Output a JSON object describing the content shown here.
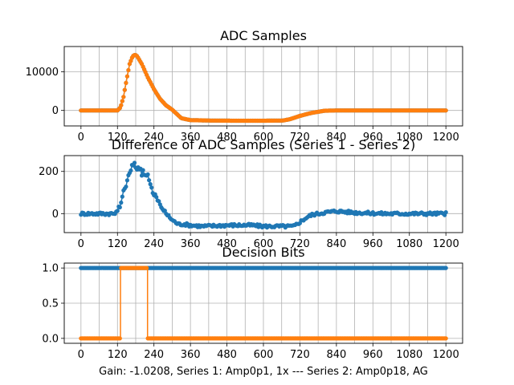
{
  "figure": {
    "xlabel": "Gain: -1.0208, Series 1: Amp0p1, 1x --- Series 2: Amp0p18, AG"
  },
  "colors": {
    "series1": "#1f77b4",
    "series2": "#ff7f0e",
    "grid": "#b0b0b0"
  },
  "chart_data": [
    {
      "type": "line",
      "title": "ADC Samples",
      "xlim": [
        -55,
        1255
      ],
      "ylim": [
        -4000,
        16500
      ],
      "xticks": [
        0,
        120,
        240,
        360,
        480,
        600,
        720,
        840,
        960,
        1080,
        1200
      ],
      "yticks": [
        0,
        10000
      ],
      "series": [
        {
          "color": "#1f77b4",
          "marker": "dot",
          "points": [
            [
              0,
              0
            ],
            [
              120,
              0
            ],
            [
              130,
              800
            ],
            [
              140,
              3500
            ],
            [
              150,
              8000
            ],
            [
              160,
              12000
            ],
            [
              170,
              14000
            ],
            [
              178,
              14400
            ],
            [
              185,
              14000
            ],
            [
              200,
              12000
            ],
            [
              220,
              8500
            ],
            [
              240,
              5500
            ],
            [
              260,
              3000
            ],
            [
              280,
              1300
            ],
            [
              300,
              200
            ],
            [
              330,
              -2000
            ],
            [
              360,
              -2500
            ],
            [
              420,
              -2600
            ],
            [
              500,
              -2650
            ],
            [
              600,
              -2650
            ],
            [
              665,
              -2600
            ],
            [
              690,
              -2200
            ],
            [
              720,
              -1400
            ],
            [
              760,
              -600
            ],
            [
              800,
              -80
            ],
            [
              840,
              0
            ],
            [
              1200,
              0
            ]
          ]
        },
        {
          "color": "#ff7f0e",
          "marker": "dot",
          "points": [
            [
              0,
              0
            ],
            [
              120,
              0
            ],
            [
              130,
              800
            ],
            [
              140,
              3500
            ],
            [
              150,
              8000
            ],
            [
              160,
              12000
            ],
            [
              170,
              14000
            ],
            [
              178,
              14400
            ],
            [
              185,
              14000
            ],
            [
              200,
              12000
            ],
            [
              220,
              8500
            ],
            [
              240,
              5500
            ],
            [
              260,
              3000
            ],
            [
              280,
              1300
            ],
            [
              300,
              200
            ],
            [
              330,
              -2000
            ],
            [
              360,
              -2500
            ],
            [
              420,
              -2600
            ],
            [
              500,
              -2650
            ],
            [
              600,
              -2650
            ],
            [
              665,
              -2600
            ],
            [
              690,
              -2200
            ],
            [
              720,
              -1400
            ],
            [
              760,
              -600
            ],
            [
              800,
              -80
            ],
            [
              840,
              0
            ],
            [
              1200,
              0
            ]
          ]
        }
      ]
    },
    {
      "type": "scatter",
      "title": "Difference of ADC Samples (Series 1 - Series 2)",
      "xlim": [
        -55,
        1255
      ],
      "ylim": [
        -90,
        275
      ],
      "xticks": [
        0,
        120,
        240,
        360,
        480,
        600,
        720,
        840,
        960,
        1080,
        1200
      ],
      "yticks": [
        0,
        200
      ],
      "series": [
        {
          "color": "#1f77b4",
          "marker": "dot",
          "connected": true,
          "noise": 7,
          "points": [
            [
              0,
              0
            ],
            [
              115,
              0
            ],
            [
              125,
              30
            ],
            [
              135,
              80
            ],
            [
              145,
              120
            ],
            [
              155,
              180
            ],
            [
              165,
              220
            ],
            [
              175,
              240
            ],
            [
              185,
              220
            ],
            [
              195,
              200
            ],
            [
              210,
              180
            ],
            [
              225,
              160
            ],
            [
              240,
              100
            ],
            [
              260,
              40
            ],
            [
              280,
              0
            ],
            [
              300,
              -30
            ],
            [
              320,
              -50
            ],
            [
              340,
              -50
            ],
            [
              360,
              -55
            ],
            [
              400,
              -60
            ],
            [
              480,
              -55
            ],
            [
              560,
              -55
            ],
            [
              600,
              -60
            ],
            [
              650,
              -60
            ],
            [
              700,
              -60
            ],
            [
              720,
              -40
            ],
            [
              740,
              -20
            ],
            [
              760,
              -5
            ],
            [
              800,
              5
            ],
            [
              840,
              12
            ],
            [
              900,
              5
            ],
            [
              1000,
              0
            ],
            [
              1200,
              0
            ]
          ]
        }
      ]
    },
    {
      "type": "line",
      "title": "Decision Bits",
      "xlim": [
        -55,
        1255
      ],
      "ylim": [
        -0.07,
        1.07
      ],
      "xticks": [
        0,
        120,
        240,
        360,
        480,
        600,
        720,
        840,
        960,
        1080,
        1200
      ],
      "yticks": [
        0.0,
        0.5,
        1.0
      ],
      "ytick_labels": [
        "0.0",
        "0.5",
        "1.0"
      ],
      "series": [
        {
          "color": "#1f77b4",
          "marker": "dot",
          "points": [
            [
              0,
              1
            ],
            [
              1200,
              1
            ]
          ]
        },
        {
          "color": "#ff7f0e",
          "marker": "dot",
          "step": true,
          "points": [
            [
              0,
              0
            ],
            [
              130,
              0
            ],
            [
              130,
              1
            ],
            [
              219,
              1
            ],
            [
              219,
              0
            ],
            [
              1200,
              0
            ]
          ]
        }
      ]
    }
  ]
}
